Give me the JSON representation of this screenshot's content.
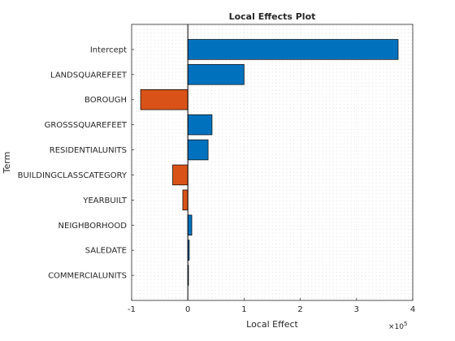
{
  "chart_data": {
    "type": "bar",
    "orientation": "horizontal",
    "title": "Local Effects Plot",
    "xlabel": "Local Effect",
    "ylabel": "Term",
    "x_exponent_label": "×10",
    "x_exponent_power": "5",
    "x_scale": 100000,
    "xlim": [
      -100000,
      400000
    ],
    "xticks": [
      -100000,
      0,
      100000,
      200000,
      300000,
      400000
    ],
    "xtick_labels": [
      "-1",
      "0",
      "1",
      "2",
      "3",
      "4"
    ],
    "grid": "dotted",
    "categories": [
      "Intercept",
      "LANDSQUAREFEET",
      "BOROUGH",
      "GROSSSQUAREFEET",
      "RESIDENTIALUNITS",
      "BUILDINGCLASSCATEGORY",
      "YEARBUILT",
      "NEIGHBORHOOD",
      "SALEDATE",
      "COMMERCIALUNITS"
    ],
    "values": [
      374000,
      100000,
      -84000,
      43000,
      36000,
      -27000,
      -9000,
      7000,
      2500,
      1000
    ],
    "colors": {
      "positive": "#0072BD",
      "negative": "#D95319"
    }
  }
}
